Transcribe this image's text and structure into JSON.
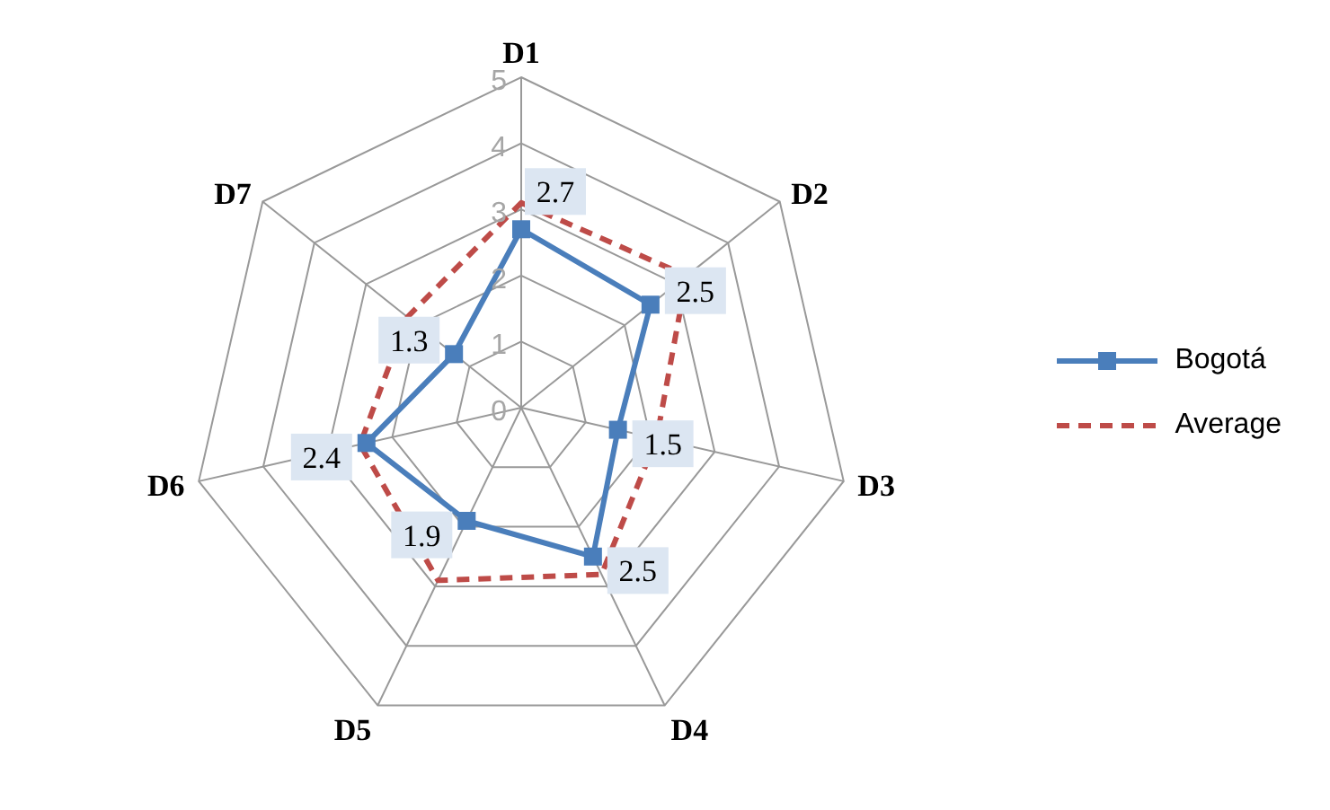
{
  "chart_data": {
    "type": "radar",
    "categories": [
      "D1",
      "D2",
      "D3",
      "D4",
      "D5",
      "D6",
      "D7"
    ],
    "series": [
      {
        "name": "Bogotá",
        "color": "#4a7ebb",
        "values": [
          2.7,
          2.5,
          1.5,
          2.5,
          1.9,
          2.4,
          1.3
        ],
        "value_labels": [
          "2.7",
          "2.5",
          "1.5",
          "2.5",
          "1.9",
          "2.4",
          "1.3"
        ],
        "marker": "square",
        "line_style": "solid"
      },
      {
        "name": "Average",
        "color": "#be4b48",
        "values": [
          3.1,
          3.2,
          2.1,
          2.8,
          2.9,
          2.5,
          2.2
        ],
        "marker": "none",
        "line_style": "dashed"
      }
    ],
    "ylim": [
      0,
      5
    ],
    "yticks": [
      0,
      1,
      2,
      3,
      4,
      5
    ],
    "grid": true,
    "legend": "right"
  }
}
